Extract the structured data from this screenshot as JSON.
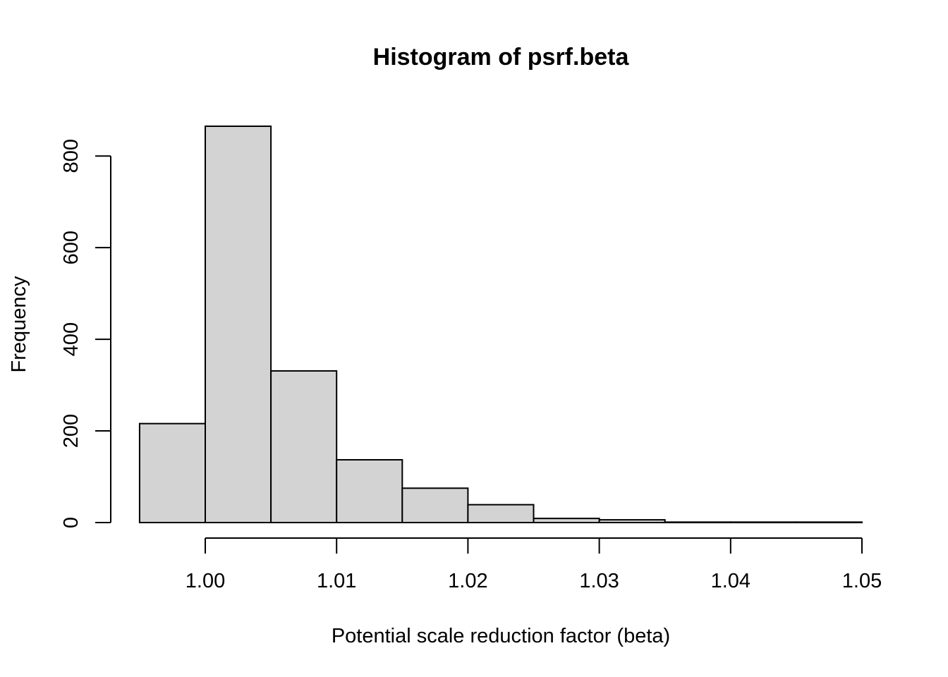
{
  "chart_data": {
    "type": "bar",
    "title": "Histogram of psrf.beta",
    "xlabel": "Potential scale reduction factor (beta)",
    "ylabel": "Frequency",
    "bins": [
      {
        "from": 0.995,
        "to": 1.0,
        "count": 216
      },
      {
        "from": 1.0,
        "to": 1.005,
        "count": 865
      },
      {
        "from": 1.005,
        "to": 1.01,
        "count": 331
      },
      {
        "from": 1.01,
        "to": 1.015,
        "count": 137
      },
      {
        "from": 1.015,
        "to": 1.02,
        "count": 75
      },
      {
        "from": 1.02,
        "to": 1.025,
        "count": 39
      },
      {
        "from": 1.025,
        "to": 1.03,
        "count": 9
      },
      {
        "from": 1.03,
        "to": 1.035,
        "count": 6
      },
      {
        "from": 1.035,
        "to": 1.04,
        "count": 1
      },
      {
        "from": 1.04,
        "to": 1.045,
        "count": 1
      },
      {
        "from": 1.045,
        "to": 1.05,
        "count": 1
      }
    ],
    "xlim": [
      0.995,
      1.05
    ],
    "ylim": [
      0,
      865
    ],
    "x_ticks": [
      1.0,
      1.01,
      1.02,
      1.03,
      1.04,
      1.05
    ],
    "x_tick_labels": [
      "1.00",
      "1.01",
      "1.02",
      "1.03",
      "1.04",
      "1.05"
    ],
    "y_ticks": [
      0,
      200,
      400,
      600,
      800
    ],
    "y_tick_labels": [
      "0",
      "200",
      "400",
      "600",
      "800"
    ],
    "bar_fill": "#d3d3d3",
    "bar_stroke": "#000000",
    "grid": false,
    "legend": "none"
  }
}
